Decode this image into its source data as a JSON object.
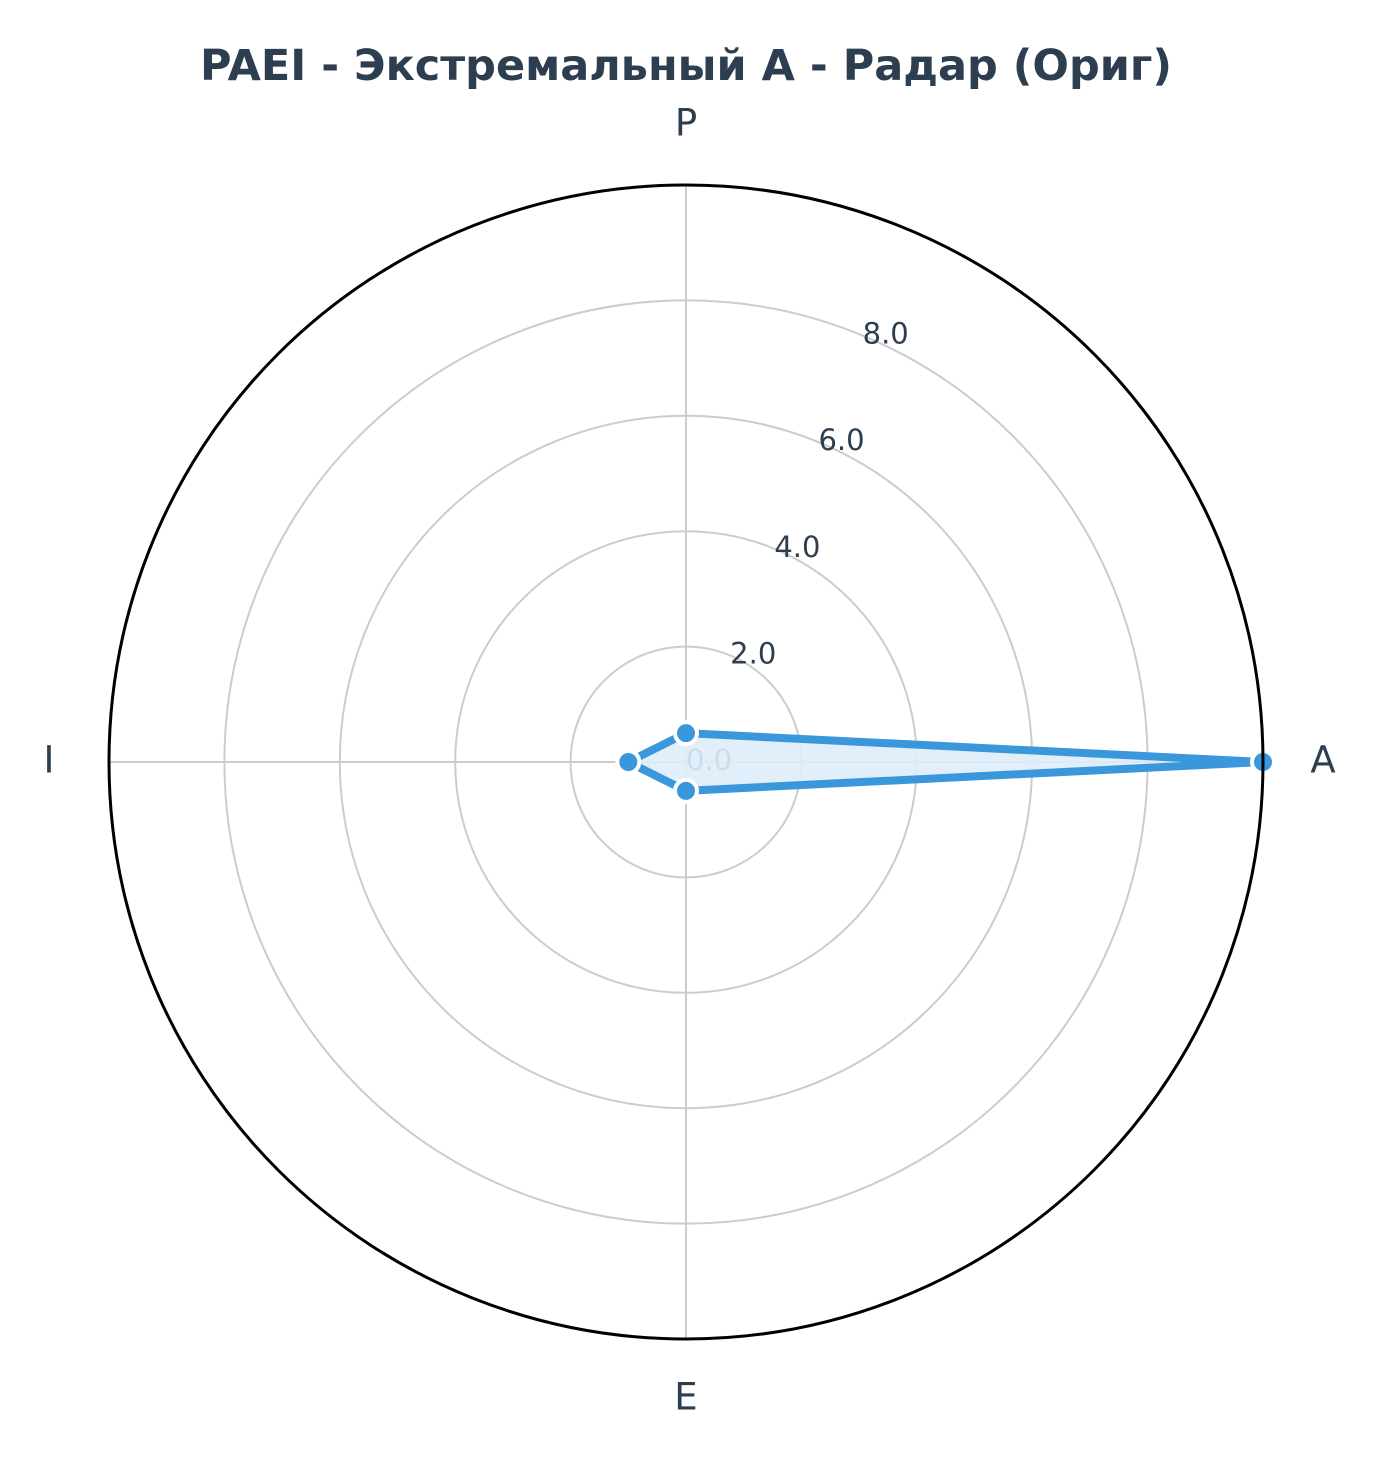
{
  "chart_data": {
    "type": "radar",
    "title": "PAEI - Экстремальный A - Радар (Ориг)",
    "axes": [
      "P",
      "A",
      "E",
      "I"
    ],
    "series": [
      {
        "values": [
          0.5,
          10.0,
          0.5,
          1.0
        ]
      }
    ],
    "rlim": [
      0,
      10
    ],
    "rticks": [
      0,
      2,
      4,
      6,
      8
    ],
    "rtick_labels": [
      "0.0",
      "2.0",
      "4.0",
      "6.0",
      "8.0"
    ],
    "grid": true,
    "colors": {
      "line": "#3a97dc",
      "fill": "#deedf9",
      "text": "#2c3e50",
      "grid": "#cccccc",
      "frame": "#000000"
    }
  }
}
